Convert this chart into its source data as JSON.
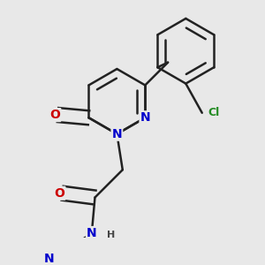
{
  "background_color": "#e8e8e8",
  "bond_color": "#222222",
  "bond_width": 1.8,
  "atom_colors": {
    "N": "#0000cc",
    "O": "#cc0000",
    "Cl": "#228B22",
    "C": "#222222",
    "H": "#444444"
  },
  "font_size_atoms": 10,
  "font_size_Cl": 9,
  "font_size_H": 8
}
